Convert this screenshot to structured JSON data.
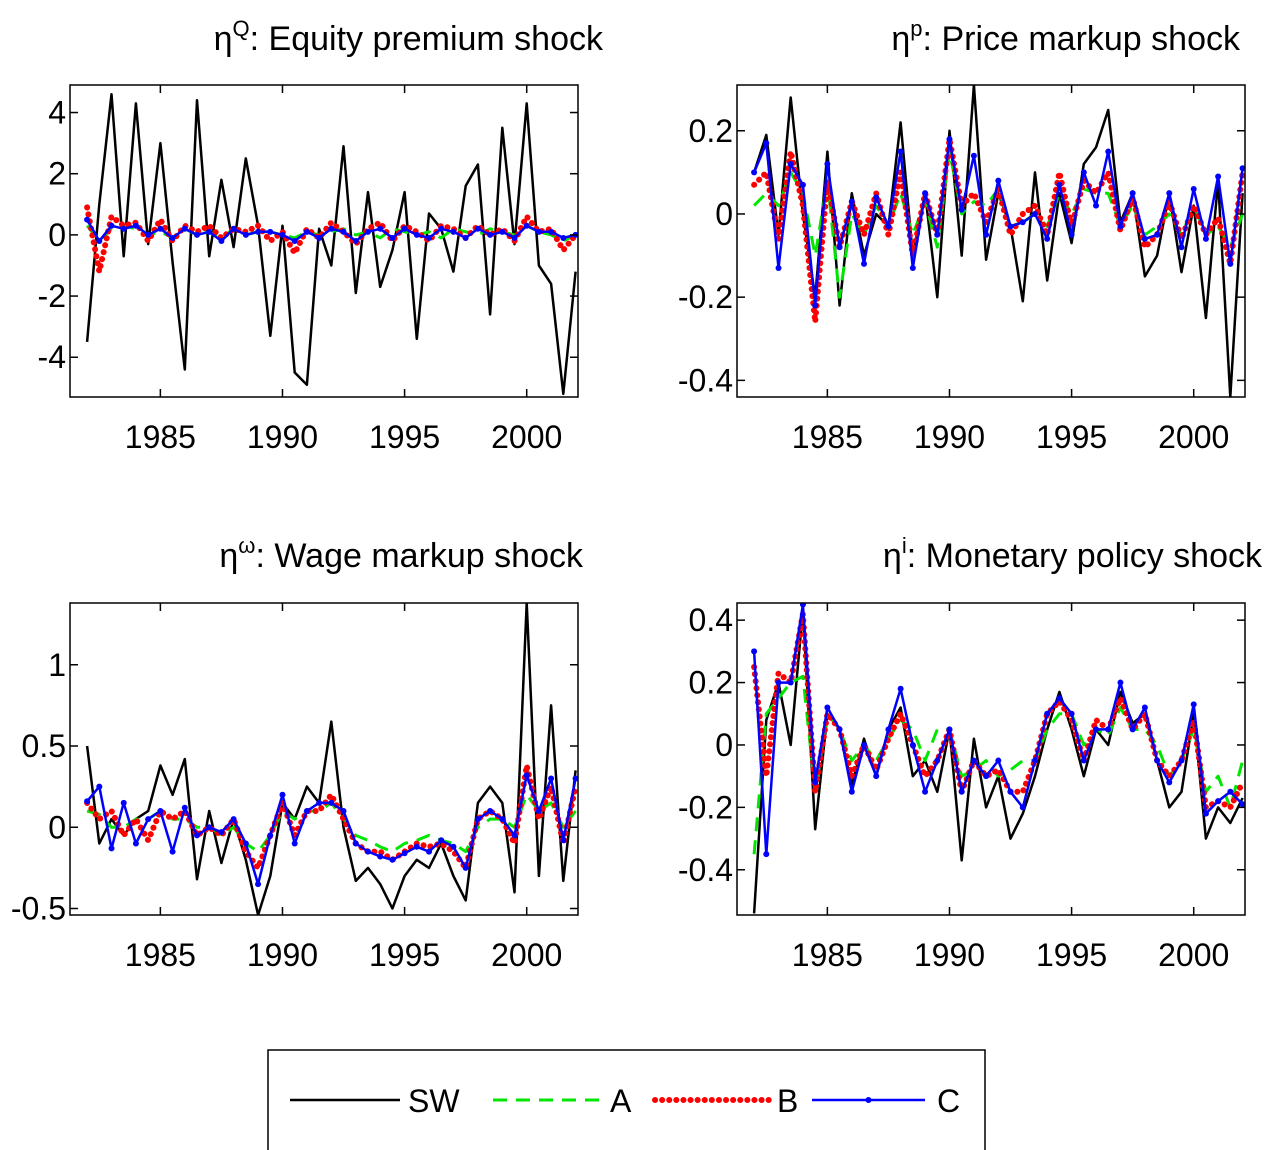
{
  "chart_data": [
    {
      "type": "line",
      "title": {
        "symbol": "η",
        "superscript": "Q",
        "text": ": Equity premium shock"
      },
      "x": [
        1982,
        1982.5,
        1983,
        1983.5,
        1984,
        1984.5,
        1985,
        1985.5,
        1986,
        1986.5,
        1987,
        1987.5,
        1988,
        1988.5,
        1989,
        1989.5,
        1990,
        1990.5,
        1991,
        1991.5,
        1992,
        1992.5,
        1993,
        1993.5,
        1994,
        1994.5,
        1995,
        1995.5,
        1996,
        1996.5,
        1997,
        1997.5,
        1998,
        1998.5,
        1999,
        1999.5,
        2000,
        2000.5,
        2001,
        2001.5,
        2002
      ],
      "xlim": [
        1981.3,
        2002.1
      ],
      "xticks": [
        1985,
        1990,
        1995,
        2000
      ],
      "ylim": [
        -5.3,
        4.9
      ],
      "yticks": [
        -4,
        -2,
        0,
        2,
        4
      ],
      "series": [
        {
          "name": "SW",
          "color": "#000000",
          "style": "solid",
          "values": [
            -3.5,
            1.0,
            4.6,
            -0.7,
            4.3,
            -0.3,
            3.0,
            -0.9,
            -4.4,
            4.4,
            -0.7,
            1.8,
            -0.4,
            2.5,
            0.3,
            -3.3,
            0.3,
            -4.5,
            -4.9,
            0.2,
            -1.0,
            2.9,
            -1.9,
            1.4,
            -1.7,
            -0.5,
            1.4,
            -3.4,
            0.7,
            0.2,
            -1.2,
            1.6,
            2.3,
            -2.6,
            3.5,
            -0.3,
            4.3,
            -1.0,
            -1.6,
            -5.2,
            -1.2
          ]
        },
        {
          "name": "A",
          "color": "#00e600",
          "style": "dashed",
          "values": [
            0.3,
            -0.2,
            0.2,
            0.3,
            0.2,
            0,
            0.1,
            -0.1,
            0.2,
            0,
            0.1,
            -0.1,
            0.2,
            0,
            0.1,
            0.1,
            0,
            -0.1,
            0.1,
            0,
            0.1,
            0.2,
            0,
            0.1,
            -0.1,
            0.2,
            0.1,
            0,
            0.1,
            -0.1,
            0.2,
            0.1,
            0,
            0.2,
            0.1,
            0,
            0.3,
            0.1,
            0,
            -0.2,
            0
          ]
        },
        {
          "name": "B",
          "color": "#ff0000",
          "style": "dotted",
          "values": [
            0.9,
            -1.2,
            0.6,
            0.3,
            0.4,
            -0.2,
            0.5,
            -0.2,
            0.3,
            0.1,
            0.3,
            -0.1,
            0.2,
            0.1,
            0.3,
            -0.2,
            0.1,
            -0.6,
            0.2,
            -0.1,
            0.4,
            0.1,
            -0.3,
            0.2,
            0.4,
            -0.2,
            0.3,
            0.1,
            -0.2,
            0.3,
            0.2,
            -0.1,
            0.3,
            0,
            0.2,
            -0.2,
            0.6,
            0.1,
            0.2,
            -0.5,
            0
          ]
        },
        {
          "name": "C",
          "color": "#0000ff",
          "style": "markers",
          "values": [
            0.5,
            -0.2,
            0.3,
            0.2,
            0.3,
            0,
            0.2,
            -0.1,
            0.2,
            0,
            0.1,
            -0.2,
            0.2,
            0,
            0.1,
            0.1,
            0,
            -0.2,
            0.1,
            -0.1,
            0.2,
            0.1,
            -0.2,
            0.1,
            0.2,
            -0.1,
            0.2,
            0,
            -0.1,
            0.2,
            0.1,
            -0.1,
            0.2,
            0,
            0.1,
            -0.1,
            0.3,
            0.1,
            0.1,
            -0.1,
            0
          ]
        }
      ]
    },
    {
      "type": "line",
      "title": {
        "symbol": "η",
        "superscript": "p",
        "text": ": Price markup shock"
      },
      "x": [
        1982,
        1982.5,
        1983,
        1983.5,
        1984,
        1984.5,
        1985,
        1985.5,
        1986,
        1986.5,
        1987,
        1987.5,
        1988,
        1988.5,
        1989,
        1989.5,
        1990,
        1990.5,
        1991,
        1991.5,
        1992,
        1992.5,
        1993,
        1993.5,
        1994,
        1994.5,
        1995,
        1995.5,
        1996,
        1996.5,
        1997,
        1997.5,
        1998,
        1998.5,
        1999,
        1999.5,
        2000,
        2000.5,
        2001,
        2001.5,
        2002
      ],
      "xlim": [
        1981.3,
        2002.1
      ],
      "xticks": [
        1985,
        1990,
        1995,
        2000
      ],
      "ylim": [
        -0.44,
        0.31
      ],
      "yticks": [
        -0.4,
        -0.2,
        0,
        0.2
      ],
      "series": [
        {
          "name": "SW",
          "color": "#000000",
          "style": "solid",
          "values": [
            0.1,
            0.19,
            -0.05,
            0.28,
            0.0,
            -0.2,
            0.15,
            -0.22,
            0.05,
            -0.1,
            0.0,
            -0.03,
            0.22,
            -0.1,
            0.05,
            -0.2,
            0.2,
            -0.1,
            0.31,
            -0.11,
            0.05,
            -0.03,
            -0.21,
            0.1,
            -0.16,
            0.05,
            -0.07,
            0.12,
            0.16,
            0.25,
            -0.02,
            0.05,
            -0.15,
            -0.1,
            0.05,
            -0.14,
            0.02,
            -0.25,
            0.08,
            -0.44,
            0.05
          ]
        },
        {
          "name": "A",
          "color": "#00e600",
          "style": "dashed",
          "values": [
            0.02,
            0.05,
            0.02,
            0.1,
            0.05,
            -0.1,
            0.08,
            -0.2,
            0.0,
            -0.05,
            0.02,
            -0.03,
            0.05,
            -0.05,
            0.03,
            -0.08,
            0.15,
            0.0,
            0.03,
            0.02,
            0.06,
            -0.03,
            -0.02,
            0.0,
            -0.03,
            0.05,
            0.0,
            0.06,
            0.05,
            0.05,
            -0.03,
            0.02,
            -0.05,
            -0.03,
            0.0,
            -0.05,
            0.02,
            -0.05,
            -0.03,
            -0.08,
            0.0
          ]
        },
        {
          "name": "B",
          "color": "#ff0000",
          "style": "dotted",
          "values": [
            0.07,
            0.1,
            -0.06,
            0.15,
            0.02,
            -0.26,
            0.08,
            -0.08,
            0.03,
            -0.05,
            0.05,
            -0.05,
            0.1,
            -0.1,
            0.05,
            -0.05,
            0.18,
            0.02,
            0.05,
            -0.02,
            0.06,
            -0.05,
            0.0,
            0.02,
            -0.05,
            0.1,
            -0.03,
            0.08,
            0.05,
            0.1,
            -0.04,
            0.04,
            -0.08,
            -0.05,
            0.03,
            -0.06,
            0.02,
            -0.05,
            -0.01,
            -0.12,
            0.1
          ]
        },
        {
          "name": "C",
          "color": "#0000ff",
          "style": "markers",
          "values": [
            0.1,
            0.17,
            -0.13,
            0.12,
            0.07,
            -0.22,
            0.12,
            -0.08,
            0.03,
            -0.12,
            0.04,
            -0.03,
            0.15,
            -0.13,
            0.05,
            -0.05,
            0.18,
            0.01,
            0.14,
            -0.05,
            0.08,
            -0.03,
            -0.02,
            0.0,
            -0.06,
            0.07,
            -0.05,
            0.1,
            0.02,
            0.15,
            -0.03,
            0.05,
            -0.06,
            -0.05,
            0.05,
            -0.08,
            0.06,
            -0.06,
            0.09,
            -0.12,
            0.11
          ]
        }
      ]
    },
    {
      "type": "line",
      "title": {
        "symbol": "η",
        "superscript": "ω",
        "text": ": Wage markup shock"
      },
      "x": [
        1982,
        1982.5,
        1983,
        1983.5,
        1984,
        1984.5,
        1985,
        1985.5,
        1986,
        1986.5,
        1987,
        1987.5,
        1988,
        1988.5,
        1989,
        1989.5,
        1990,
        1990.5,
        1991,
        1991.5,
        1992,
        1992.5,
        1993,
        1993.5,
        1994,
        1994.5,
        1995,
        1995.5,
        1996,
        1996.5,
        1997,
        1997.5,
        1998,
        1998.5,
        1999,
        1999.5,
        2000,
        2000.5,
        2001,
        2001.5,
        2002
      ],
      "xlim": [
        1981.3,
        2002.1
      ],
      "xticks": [
        1985,
        1990,
        1995,
        2000
      ],
      "ylim": [
        -0.54,
        1.38
      ],
      "yticks": [
        -0.5,
        0,
        0.5,
        1
      ],
      "series": [
        {
          "name": "SW",
          "color": "#000000",
          "style": "solid",
          "values": [
            0.5,
            -0.1,
            0.05,
            -0.05,
            0.05,
            0.1,
            0.38,
            0.2,
            0.42,
            -0.32,
            0.1,
            -0.22,
            0.05,
            -0.2,
            -0.54,
            -0.3,
            0.15,
            0.05,
            0.25,
            0.15,
            0.65,
            0.0,
            -0.33,
            -0.25,
            -0.35,
            -0.5,
            -0.3,
            -0.2,
            -0.25,
            -0.1,
            -0.3,
            -0.45,
            0.15,
            0.25,
            0.15,
            -0.4,
            1.38,
            -0.3,
            0.75,
            -0.33,
            0.35
          ]
        },
        {
          "name": "A",
          "color": "#00e600",
          "style": "dashed",
          "values": [
            0.1,
            0.08,
            0.0,
            0.0,
            0.05,
            0.05,
            0.1,
            0.05,
            0.05,
            0.0,
            0.0,
            -0.05,
            0.0,
            -0.1,
            -0.15,
            -0.05,
            0.1,
            0.05,
            0.1,
            0.1,
            0.15,
            0.05,
            -0.05,
            -0.08,
            -0.12,
            -0.15,
            -0.1,
            -0.08,
            -0.05,
            -0.08,
            -0.1,
            -0.15,
            0.0,
            0.05,
            0.05,
            0.0,
            0.2,
            0.1,
            0.15,
            0.0,
            0.1
          ]
        },
        {
          "name": "B",
          "color": "#ff0000",
          "style": "dotted",
          "values": [
            0.15,
            0.05,
            0.1,
            -0.05,
            0.05,
            -0.08,
            0.1,
            0.05,
            0.1,
            -0.05,
            0.0,
            -0.05,
            0.05,
            -0.15,
            -0.25,
            -0.05,
            0.15,
            -0.05,
            0.1,
            0.1,
            0.2,
            0.05,
            -0.1,
            -0.15,
            -0.15,
            -0.2,
            -0.15,
            -0.1,
            -0.12,
            -0.1,
            -0.15,
            -0.25,
            0.05,
            0.1,
            0.05,
            -0.1,
            0.38,
            0.05,
            0.25,
            -0.1,
            0.25
          ]
        },
        {
          "name": "C",
          "color": "#0000ff",
          "style": "markers",
          "values": [
            0.16,
            0.25,
            -0.13,
            0.15,
            -0.1,
            0.05,
            0.1,
            -0.15,
            0.12,
            -0.05,
            0.0,
            -0.03,
            0.05,
            -0.1,
            -0.35,
            -0.05,
            0.2,
            -0.1,
            0.1,
            0.15,
            0.15,
            0.1,
            -0.1,
            -0.15,
            -0.18,
            -0.2,
            -0.16,
            -0.12,
            -0.15,
            -0.08,
            -0.12,
            -0.25,
            0.05,
            0.1,
            0.05,
            -0.05,
            0.32,
            0.1,
            0.3,
            -0.08,
            0.3
          ]
        }
      ]
    },
    {
      "type": "line",
      "title": {
        "symbol": "η",
        "superscript": "i",
        "text": ": Monetary policy shock"
      },
      "x": [
        1982,
        1982.5,
        1983,
        1983.5,
        1984,
        1984.5,
        1985,
        1985.5,
        1986,
        1986.5,
        1987,
        1987.5,
        1988,
        1988.5,
        1989,
        1989.5,
        1990,
        1990.5,
        1991,
        1991.5,
        1992,
        1992.5,
        1993,
        1993.5,
        1994,
        1994.5,
        1995,
        1995.5,
        1996,
        1996.5,
        1997,
        1997.5,
        1998,
        1998.5,
        1999,
        1999.5,
        2000,
        2000.5,
        2001,
        2001.5,
        2002
      ],
      "xlim": [
        1981.3,
        2002.1
      ],
      "xticks": [
        1985,
        1990,
        1995,
        2000
      ],
      "ylim": [
        -0.545,
        0.455
      ],
      "yticks": [
        -0.4,
        -0.2,
        0,
        0.2,
        0.4
      ],
      "series": [
        {
          "name": "SW",
          "color": "#000000",
          "style": "solid",
          "values": [
            -0.54,
            0.08,
            0.2,
            0.0,
            0.43,
            -0.27,
            0.1,
            0.05,
            -0.13,
            0.02,
            -0.1,
            0.05,
            0.12,
            -0.1,
            -0.05,
            -0.15,
            0.05,
            -0.37,
            0.02,
            -0.2,
            -0.1,
            -0.3,
            -0.22,
            -0.1,
            0.05,
            0.17,
            0.05,
            -0.1,
            0.05,
            0.0,
            0.17,
            0.07,
            0.1,
            -0.05,
            -0.2,
            -0.15,
            0.1,
            -0.3,
            -0.2,
            -0.25,
            -0.17
          ]
        },
        {
          "name": "A",
          "color": "#00e600",
          "style": "dashed",
          "values": [
            -0.35,
            0.1,
            0.15,
            0.2,
            0.22,
            -0.15,
            0.1,
            0.05,
            -0.05,
            0.0,
            -0.05,
            0.02,
            0.08,
            0.05,
            -0.05,
            0.05,
            0.05,
            -0.1,
            -0.08,
            -0.05,
            -0.1,
            -0.08,
            -0.05,
            -0.05,
            0.05,
            0.1,
            0.1,
            0.0,
            0.05,
            0.03,
            0.12,
            0.05,
            0.05,
            0.0,
            -0.1,
            -0.05,
            0.05,
            -0.15,
            -0.1,
            -0.2,
            -0.05
          ]
        },
        {
          "name": "B",
          "color": "#ff0000",
          "style": "dotted",
          "values": [
            0.25,
            -0.1,
            0.23,
            0.2,
            0.42,
            -0.15,
            0.1,
            0.05,
            -0.1,
            0.0,
            -0.08,
            0.02,
            0.1,
            0.0,
            -0.1,
            -0.05,
            0.05,
            -0.15,
            -0.05,
            -0.1,
            -0.08,
            -0.15,
            -0.15,
            -0.05,
            0.1,
            0.14,
            0.08,
            -0.05,
            0.08,
            0.05,
            0.15,
            0.05,
            0.1,
            -0.05,
            -0.1,
            -0.05,
            0.08,
            -0.2,
            -0.18,
            -0.2,
            -0.12
          ]
        },
        {
          "name": "C",
          "color": "#0000ff",
          "style": "markers",
          "values": [
            0.3,
            -0.35,
            0.2,
            0.2,
            0.45,
            -0.12,
            0.12,
            0.05,
            -0.15,
            0.0,
            -0.1,
            0.05,
            0.18,
            0.0,
            -0.15,
            -0.05,
            0.05,
            -0.15,
            -0.05,
            -0.1,
            -0.05,
            -0.15,
            -0.2,
            -0.05,
            0.1,
            0.15,
            0.1,
            -0.05,
            0.05,
            0.05,
            0.2,
            0.05,
            0.12,
            -0.05,
            -0.12,
            -0.05,
            0.13,
            -0.22,
            -0.18,
            -0.15,
            -0.19
          ]
        }
      ]
    }
  ]
}
